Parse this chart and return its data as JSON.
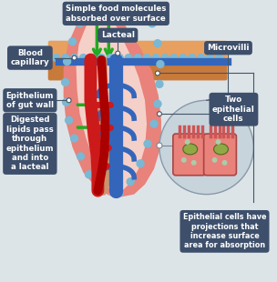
{
  "bg_color": "#dde4e8",
  "label_box_color": "#3d4f6b",
  "label_text_color": "#ffffff",
  "villi_outer_color": "#e8827a",
  "villi_inner_color": "#f5d0c8",
  "dots_color": "#7ab8d4",
  "red_vessel_color": "#cc1a1a",
  "blue_vessel_color": "#3366bb",
  "brown_core_color": "#c8956a",
  "green_arrow_color": "#22aa22",
  "microvilli_bg": "#e8827a",
  "cell_nucleus_color": "#8faa44",
  "circle_bg": "#c8d4dc",
  "labels": {
    "top": "Simple food molecules\nabsorbed over surface",
    "top_right": "Microvilli",
    "left_top": "Epithelium\nof gut wall",
    "left_mid": "Digested\nlipids pass\nthrough\nepithelium\nand into\na lacteal",
    "left_bot": "Blood\ncapillary",
    "bottom_mid": "Lacteal",
    "right_bot": "Epithelial cells have\nprojections that\nincrease surface\narea for absorption",
    "right_mid": "Two\nepithelial\ncells"
  }
}
